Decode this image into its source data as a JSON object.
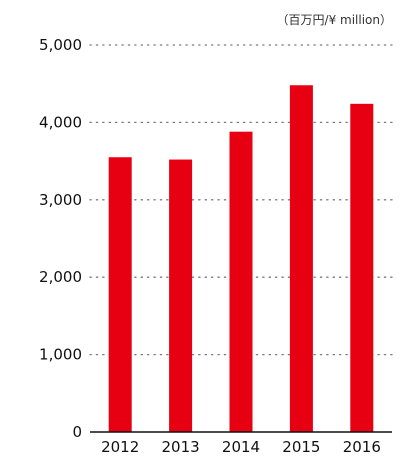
{
  "chart_data": {
    "type": "bar",
    "unit_label": "（百万円/¥ million）",
    "categories": [
      "2012",
      "2013",
      "2014",
      "2015",
      "2016"
    ],
    "values": [
      3550,
      3520,
      3880,
      4480,
      4240
    ],
    "ylim": [
      0,
      5000
    ],
    "yticks": [
      0,
      1000,
      2000,
      3000,
      4000,
      5000
    ],
    "ytick_labels": [
      "0",
      "1,000",
      "2,000",
      "3,000",
      "4,000",
      "5,000"
    ],
    "grid": true,
    "bar_color": "#e60012"
  }
}
